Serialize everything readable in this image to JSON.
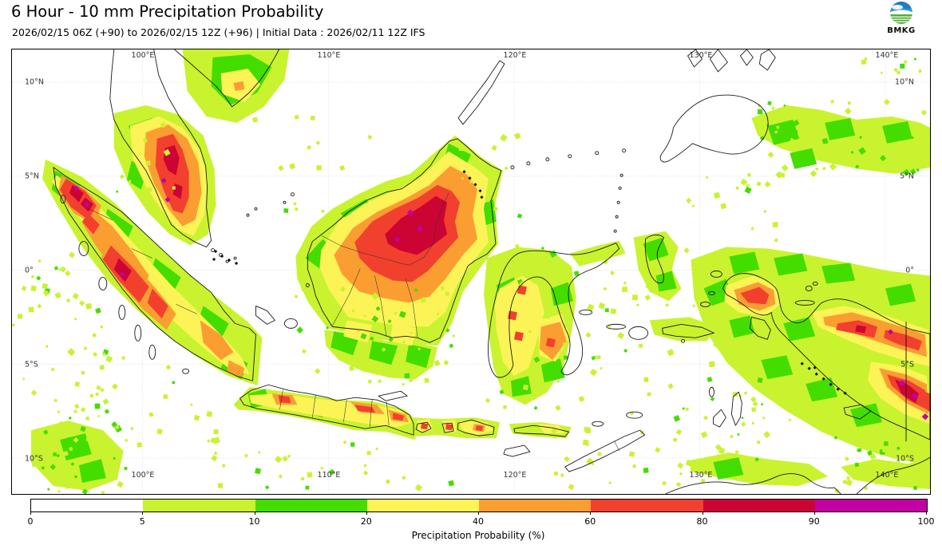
{
  "header": {
    "title": "6 Hour - 10 mm Precipitation Probability",
    "subtitle": "2026/02/15 06Z (+90) to 2026/02/15 12Z (+96) | Initial Data : 2026/02/11 12Z IFS"
  },
  "logo": {
    "text": "BMKG"
  },
  "map": {
    "lon_labels": [
      "100°E",
      "110°E",
      "120°E",
      "130°E",
      "140°E"
    ],
    "lat_labels": [
      "10°N",
      "5°N",
      "0°",
      "5°S",
      "10°S"
    ]
  },
  "colorbar": {
    "label": "Precipitation Probability (%)",
    "ticks": [
      "0",
      "5",
      "10",
      "20",
      "40",
      "60",
      "80",
      "90",
      "100"
    ],
    "segments": [
      "#ffffff",
      "#c9f32e",
      "#44dd00",
      "#fcf357",
      "#fb9e32",
      "#f2402e",
      "#cc0433",
      "#c400a5"
    ]
  }
}
